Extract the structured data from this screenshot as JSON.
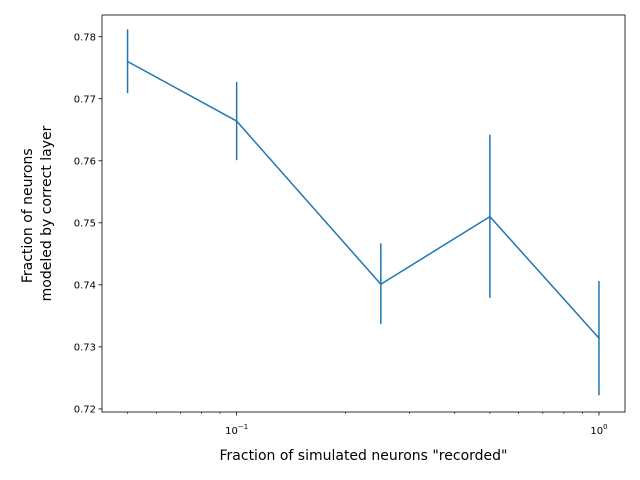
{
  "chart_data": {
    "type": "line",
    "title": "",
    "xlabel": "Fraction of simulated neurons \"recorded\"",
    "ylabel_lines": [
      "Fraction of neurons",
      "modeled by correct layer"
    ],
    "x_scale": "log",
    "xlim": [
      0.0425,
      1.18
    ],
    "ylim": [
      0.7195,
      0.7835
    ],
    "x_ticks": [
      {
        "value": 0.1,
        "base": "10",
        "exp": "−1"
      },
      {
        "value": 1.0,
        "base": "10",
        "exp": "0"
      }
    ],
    "y_ticks": [
      {
        "value": 0.72,
        "label": "0.72"
      },
      {
        "value": 0.73,
        "label": "0.73"
      },
      {
        "value": 0.74,
        "label": "0.74"
      },
      {
        "value": 0.75,
        "label": "0.75"
      },
      {
        "value": 0.76,
        "label": "0.76"
      },
      {
        "value": 0.77,
        "label": "0.77"
      },
      {
        "value": 0.78,
        "label": "0.78"
      }
    ],
    "grid": false,
    "series": [
      {
        "color": "#1f77b4",
        "x": [
          0.05,
          0.1,
          0.25,
          0.5,
          1.0
        ],
        "y": [
          0.776,
          0.7664,
          0.7401,
          0.751,
          0.7314
        ],
        "yerr_low": [
          0.7709,
          0.7601,
          0.7337,
          0.7379,
          0.7222
        ],
        "yerr_high": [
          0.7812,
          0.7727,
          0.7467,
          0.7642,
          0.7406
        ]
      }
    ]
  }
}
